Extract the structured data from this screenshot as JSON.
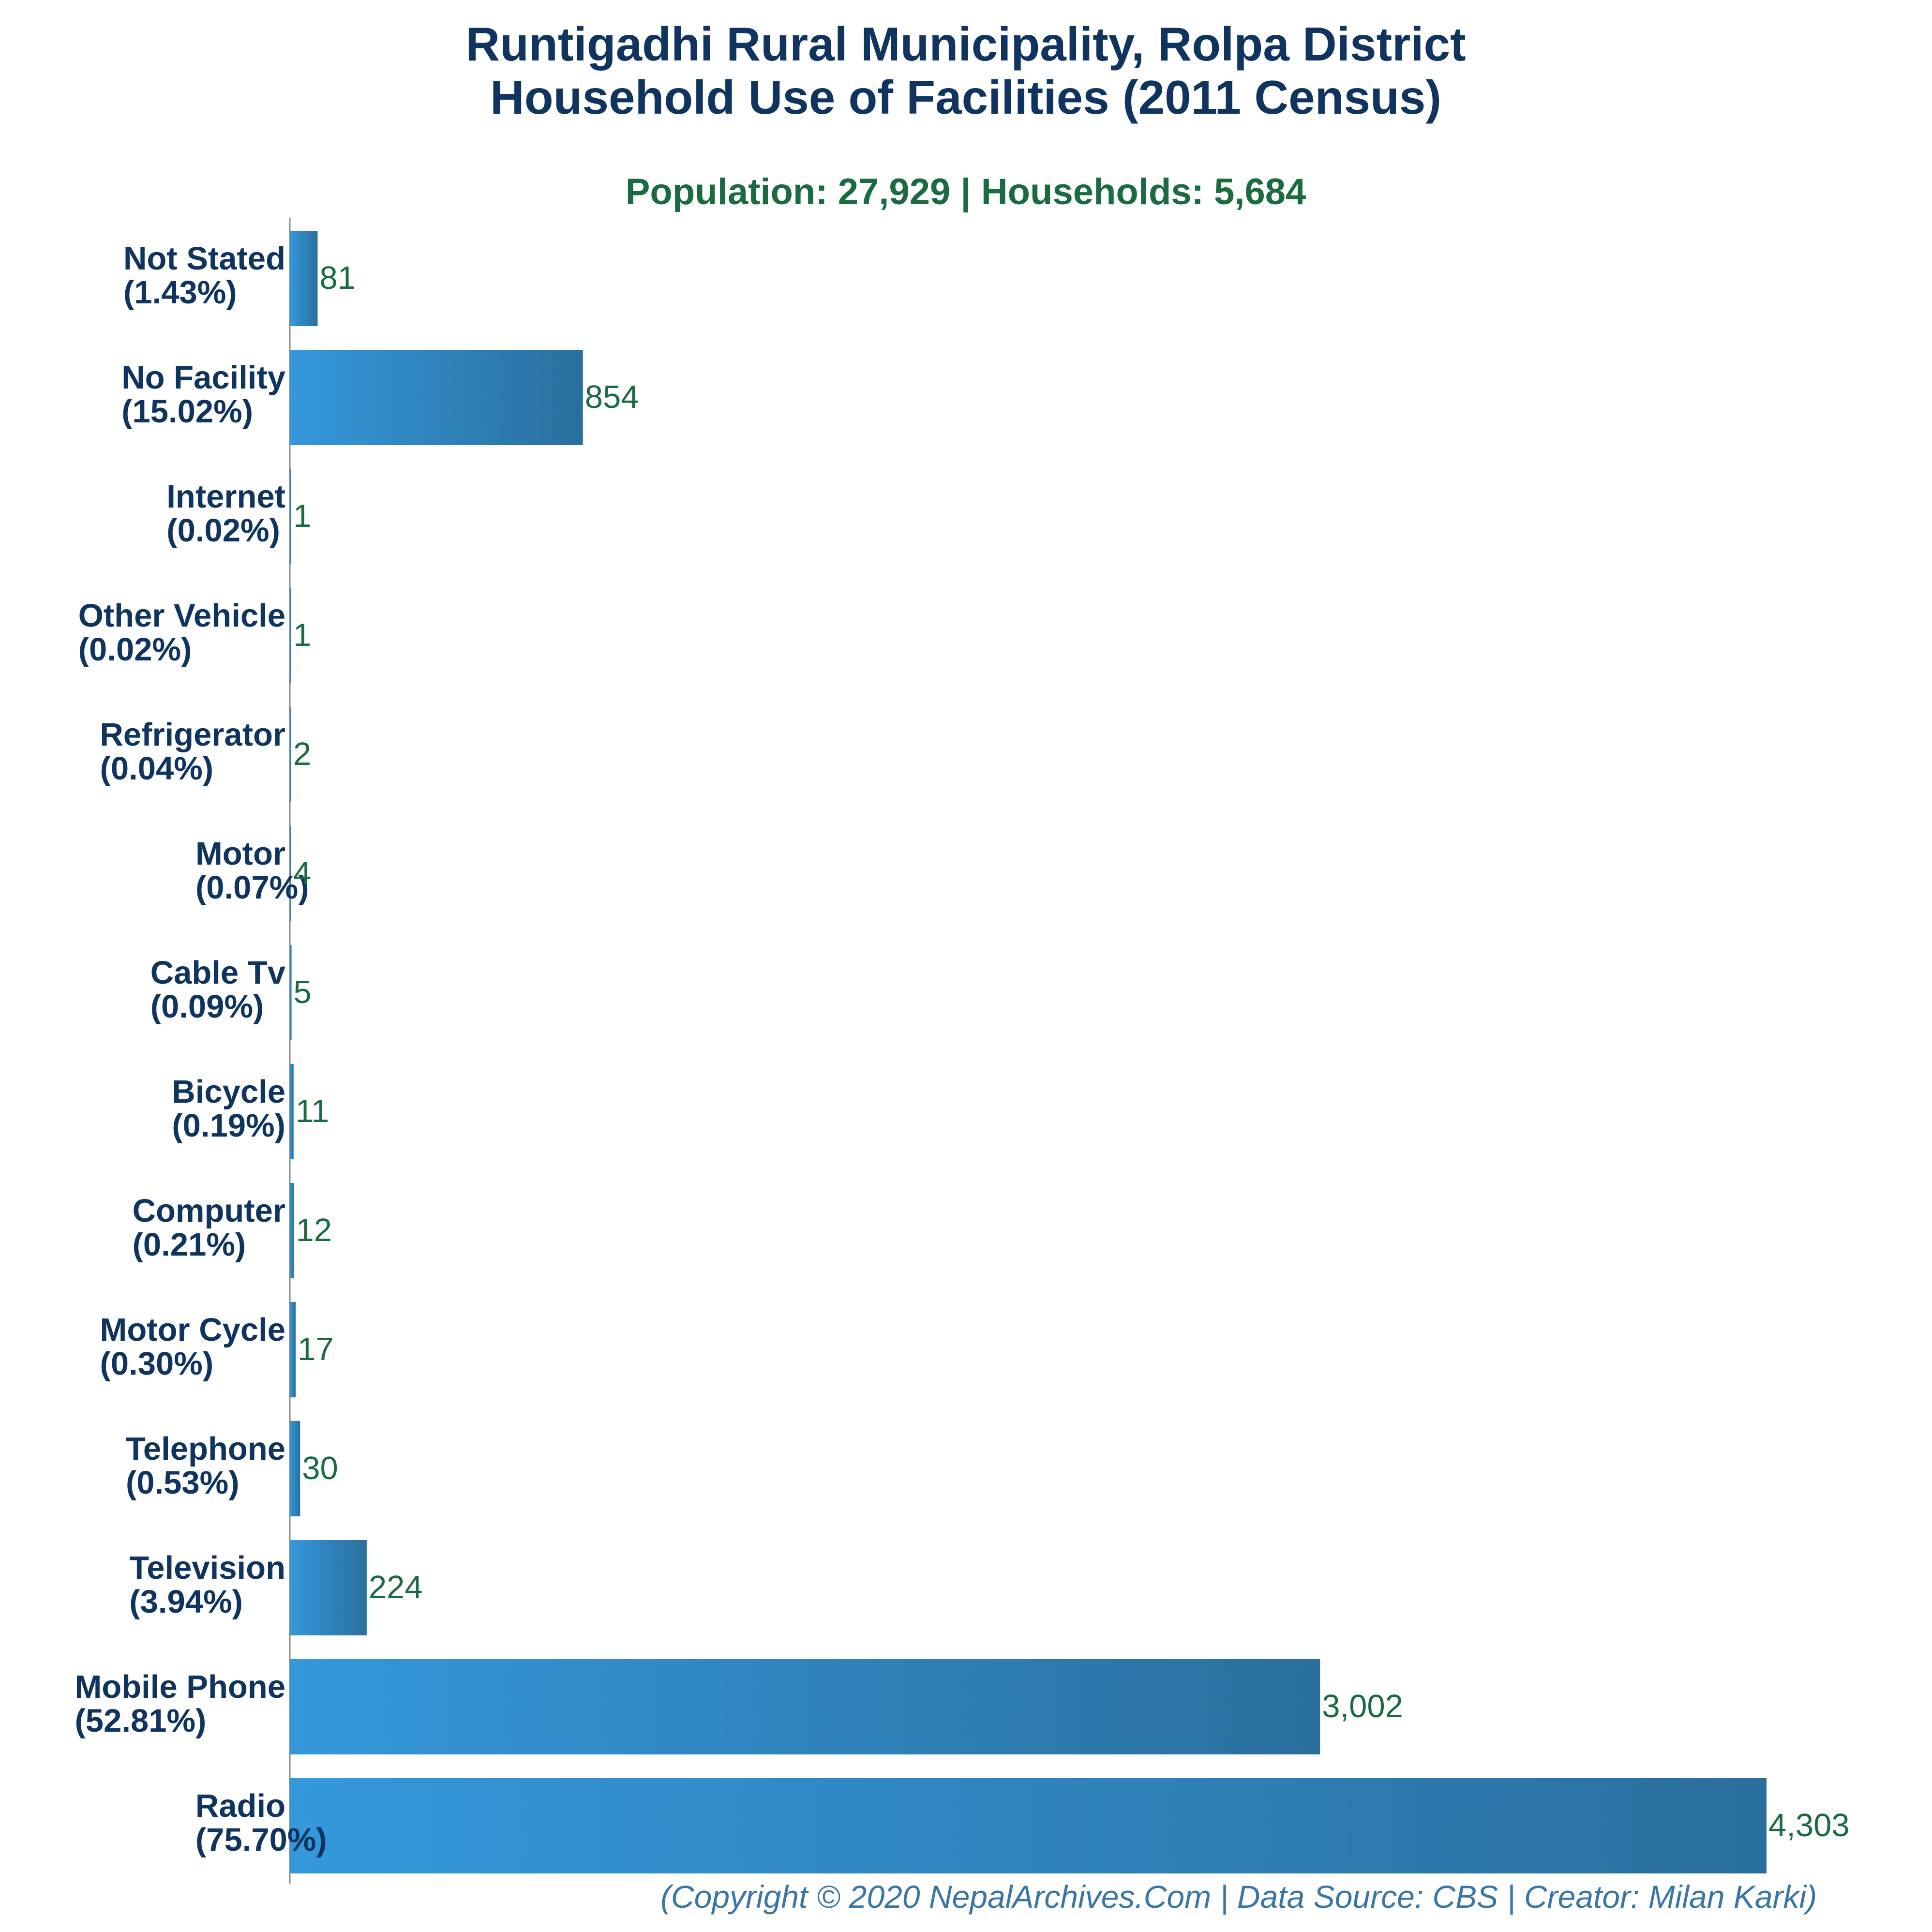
{
  "chart_data": {
    "type": "bar",
    "orientation": "horizontal",
    "title": "Runtigadhi Rural Municipality, Rolpa District",
    "title_line2": "Household Use of Facilities (2011 Census)",
    "subtitle": "Population: 27,929 | Households: 5,684",
    "caption": "(Copyright © 2020 NepalArchives.Com | Data Source: CBS | Creator: Milan Karki)",
    "xlabel": "",
    "ylabel": "",
    "xlim": [
      0,
      4303
    ],
    "grid": false,
    "legend": false,
    "bar_color_start": "#3498db",
    "bar_color_end": "#2a6f9e",
    "title_color": "#0f3460",
    "value_label_color": "#1b6b40",
    "caption_color": "#3a75a8",
    "categories": [
      "Not Stated",
      "No Facility",
      "Internet",
      "Other Vehicle",
      "Refrigerator",
      "Motor",
      "Cable Tv",
      "Bicycle",
      "Computer",
      "Motor Cycle",
      "Telephone",
      "Television",
      "Mobile Phone",
      "Radio"
    ],
    "percent_labels": [
      "(1.43%)",
      "(15.02%)",
      "(0.02%)",
      "(0.02%)",
      "(0.04%)",
      "(0.07%)",
      "(0.09%)",
      "(0.19%)",
      "(0.21%)",
      "(0.30%)",
      "(0.53%)",
      "(3.94%)",
      "(52.81%)",
      "(75.70%)"
    ],
    "values": [
      81,
      854,
      1,
      1,
      2,
      4,
      5,
      11,
      12,
      17,
      30,
      224,
      3002,
      4303
    ],
    "value_labels": [
      "81",
      "854",
      "1",
      "1",
      "2",
      "4",
      "5",
      "11",
      "12",
      "17",
      "30",
      "224",
      "3,002",
      "4,303"
    ]
  }
}
